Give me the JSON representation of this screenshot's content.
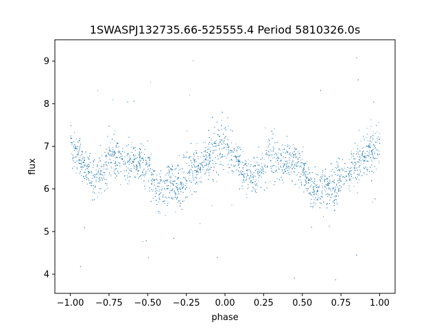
{
  "chart_data": {
    "type": "scatter",
    "title": "1SWASPJ132735.66-525555.4 Period 5810326.0s",
    "xlabel": "phase",
    "ylabel": "flux",
    "xlim": [
      -1.1,
      1.1
    ],
    "ylim": [
      3.55,
      9.5
    ],
    "x_ticks": [
      -1.0,
      -0.75,
      -0.5,
      -0.25,
      0.0,
      0.25,
      0.5,
      0.75,
      1.0
    ],
    "x_tick_labels": [
      "−1.00",
      "−0.75",
      "−0.50",
      "−0.25",
      "0.00",
      "0.25",
      "0.50",
      "0.75",
      "1.00"
    ],
    "y_ticks": [
      4,
      5,
      6,
      7,
      8,
      9
    ],
    "y_tick_labels": [
      "4",
      "5",
      "6",
      "7",
      "8",
      "9"
    ],
    "grid": false,
    "legend": "none",
    "marker_color": "#1f77b4",
    "mean_curve": {
      "description_of_trend": "phase-folded light curve repeated over two cycles",
      "phase": [
        0.0,
        0.05,
        0.1,
        0.15,
        0.2,
        0.25,
        0.3,
        0.35,
        0.4,
        0.45,
        0.5,
        0.55,
        0.6,
        0.65,
        0.7,
        0.75,
        0.8,
        0.85,
        0.9,
        0.95,
        1.0
      ],
      "flux": [
        7.05,
        6.85,
        6.5,
        6.25,
        6.35,
        6.7,
        6.8,
        6.6,
        6.7,
        6.6,
        6.5,
        6.05,
        6.0,
        6.1,
        6.0,
        6.35,
        6.45,
        6.6,
        6.8,
        6.95,
        7.05
      ],
      "scatter_sigma": [
        0.35,
        0.35,
        0.3,
        0.3,
        0.35,
        0.4,
        0.4,
        0.35,
        0.3,
        0.3,
        0.35,
        0.35,
        0.35,
        0.35,
        0.4,
        0.35,
        0.35,
        0.35,
        0.4,
        0.4,
        0.35
      ]
    }
  }
}
